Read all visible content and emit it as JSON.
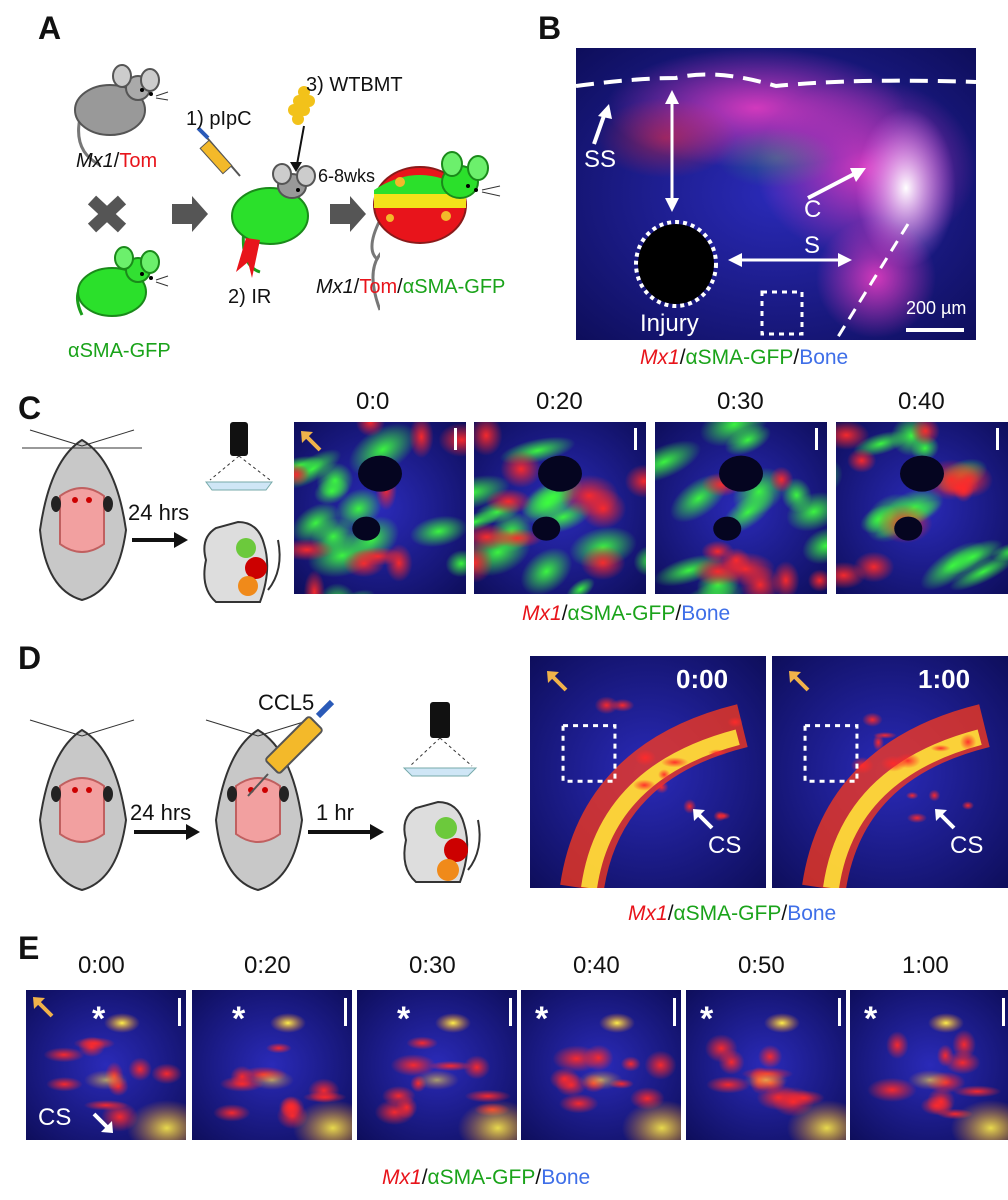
{
  "panels": {
    "a": "A",
    "b": "B",
    "c": "C",
    "d": "D",
    "e": "E"
  },
  "panel_a": {
    "mouse1": "Mx1",
    "mouse1_suffix": "Tom",
    "mouse2": "αSMA-GFP",
    "step1": "1) pIpC",
    "step2": "2) IR",
    "step3": "3) WTBMT",
    "interval": "6-8wks",
    "result_mx1": "Mx1",
    "result_tom": "Tom",
    "result_gfp": "αSMA-GFP",
    "sep": "/"
  },
  "panel_b": {
    "ss": "SS",
    "cs_c": "C",
    "cs_s": "S",
    "injury": "Injury",
    "scale": "200 µm",
    "caption": {
      "mx1": "Mx1",
      "gfp": "αSMA-GFP",
      "bone": "Bone",
      "sep": "/"
    }
  },
  "panel_c": {
    "interval": "24 hrs",
    "times": [
      "0:0",
      "0:20",
      "0:30",
      "0:40"
    ],
    "caption": {
      "mx1": "Mx1",
      "gfp": "αSMA-GFP",
      "bone": "Bone",
      "sep": "/"
    }
  },
  "panel_d": {
    "interval1": "24 hrs",
    "drug": "CCL5",
    "interval2": "1 hr",
    "times": [
      "0:00",
      "1:00"
    ],
    "cs": "CS",
    "caption": {
      "mx1": "Mx1",
      "gfp": "αSMA-GFP",
      "bone": "Bone",
      "sep": "/"
    }
  },
  "panel_e": {
    "times": [
      "0:00",
      "0:20",
      "0:30",
      "0:40",
      "0:50",
      "1:00"
    ],
    "cs": "CS",
    "star": "*",
    "caption": {
      "mx1": "Mx1",
      "gfp": "αSMA-GFP",
      "bone": "Bone",
      "sep": "/"
    }
  },
  "colors": {
    "red": "#e8141b",
    "green": "#1aa31a",
    "blue": "#3f6fe8",
    "orange_arrow": "#f0b24a"
  }
}
